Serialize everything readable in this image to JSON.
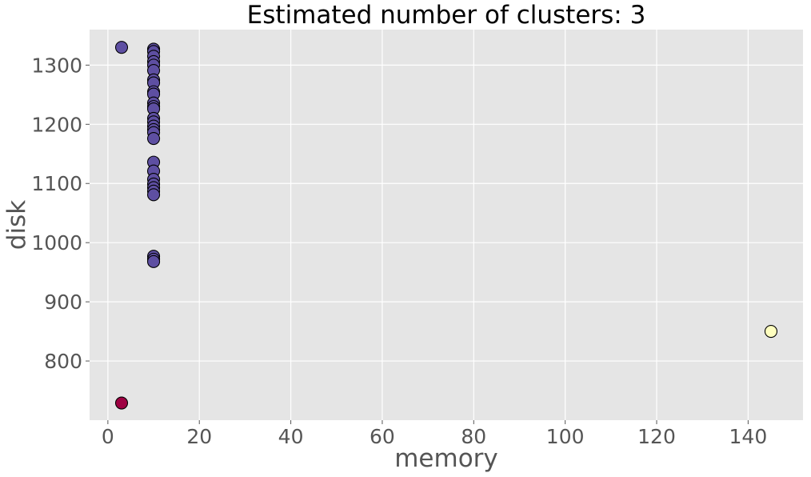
{
  "chart_data": {
    "type": "scatter",
    "title": "Estimated number of clusters: 3",
    "xlabel": "memory",
    "ylabel": "disk",
    "xlim": [
      -4,
      152
    ],
    "ylim": [
      700,
      1360
    ],
    "xticks": [
      0,
      20,
      40,
      60,
      80,
      100,
      120,
      140
    ],
    "yticks": [
      800,
      900,
      1000,
      1100,
      1200,
      1300
    ],
    "xtick_labels": [
      "0",
      "20",
      "40",
      "60",
      "80",
      "100",
      "120",
      "140"
    ],
    "ytick_labels": [
      "800",
      "900",
      "1000",
      "1100",
      "1200",
      "1300"
    ],
    "grid": true,
    "style": "ggplot",
    "clusters": [
      {
        "color": "#5e4fa2",
        "points": [
          [
            3,
            1330
          ],
          [
            10,
            1327
          ],
          [
            10,
            1323
          ],
          [
            10,
            1315
          ],
          [
            10,
            1306
          ],
          [
            10,
            1300
          ],
          [
            10,
            1291
          ],
          [
            10,
            1275
          ],
          [
            10,
            1270
          ],
          [
            10,
            1255
          ],
          [
            10,
            1251
          ],
          [
            10,
            1236
          ],
          [
            10,
            1230
          ],
          [
            10,
            1226
          ],
          [
            10,
            1210
          ],
          [
            10,
            1204
          ],
          [
            10,
            1197
          ],
          [
            10,
            1191
          ],
          [
            10,
            1186
          ],
          [
            10,
            1176
          ],
          [
            10,
            1136
          ],
          [
            10,
            1121
          ],
          [
            10,
            1107
          ],
          [
            10,
            1099
          ],
          [
            10,
            1093
          ],
          [
            10,
            1087
          ],
          [
            10,
            1081
          ],
          [
            10,
            977
          ],
          [
            10,
            972
          ],
          [
            10,
            968
          ]
        ]
      },
      {
        "color": "#9e0142",
        "points": [
          [
            3,
            729
          ]
        ]
      },
      {
        "color": "#ffffbf",
        "points": [
          [
            145,
            850
          ]
        ]
      }
    ]
  }
}
